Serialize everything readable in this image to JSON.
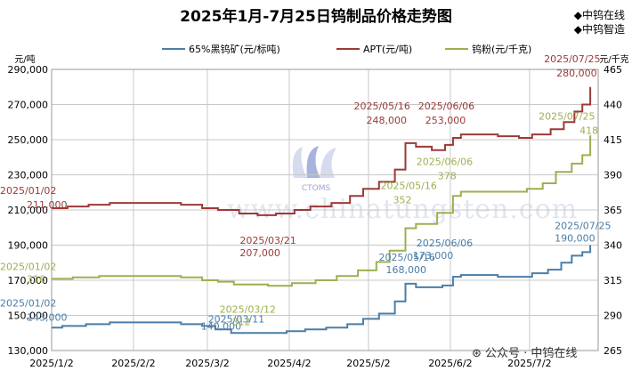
{
  "header": {
    "title": "2025年1月-7月25日钨制品价格走势图",
    "brand_line1": "中钨在线",
    "brand_line2": "中钨智造"
  },
  "watermark": {
    "logo_text": "CTOMS",
    "text": "www.chinatungsten.com"
  },
  "footer": {
    "text": "公众号 · 中钨在线"
  },
  "colors": {
    "ore": "#4a7ea8",
    "apt": "#9b3a38",
    "powder": "#9bb050",
    "grid": "#c8c8c8"
  },
  "chart_data": {
    "type": "line",
    "title": "2025年1月-7月25日钨制品价格走势图",
    "left_axis": {
      "unit_label": "元/吨",
      "ylim": [
        130000,
        290000
      ],
      "ticks": [
        130000,
        150000,
        170000,
        190000,
        210000,
        230000,
        250000,
        270000,
        290000
      ]
    },
    "right_axis": {
      "unit_label": "元/千克",
      "ylim": [
        265,
        465
      ],
      "ticks": [
        265,
        290,
        315,
        340,
        365,
        390,
        415,
        440,
        465
      ]
    },
    "x_ticks": [
      "2025/1/2",
      "2025/2/2",
      "2025/3/2",
      "2025/4/2",
      "2025/5/2",
      "2025/6/2",
      "2025/7/2"
    ],
    "x_range": [
      "2025/1/2",
      "2025/7/28"
    ],
    "legend_position": "top",
    "series": [
      {
        "name": "65%黑钨矿(元/标吨)",
        "axis": "left",
        "color": "#4a7ea8",
        "points": [
          [
            "2025/1/2",
            143000
          ],
          [
            "2025/1/6",
            144000
          ],
          [
            "2025/1/15",
            145000
          ],
          [
            "2025/1/24",
            146000
          ],
          [
            "2025/2/12",
            146000
          ],
          [
            "2025/2/20",
            145000
          ],
          [
            "2025/2/28",
            144000
          ],
          [
            "2025/3/5",
            142000
          ],
          [
            "2025/3/11",
            140000
          ],
          [
            "2025/3/25",
            140000
          ],
          [
            "2025/4/1",
            141000
          ],
          [
            "2025/4/8",
            142000
          ],
          [
            "2025/4/16",
            143000
          ],
          [
            "2025/4/24",
            145000
          ],
          [
            "2025/4/30",
            148000
          ],
          [
            "2025/5/6",
            151000
          ],
          [
            "2025/5/12",
            158000
          ],
          [
            "2025/5/16",
            168000
          ],
          [
            "2025/5/20",
            166000
          ],
          [
            "2025/5/30",
            167000
          ],
          [
            "2025/6/3",
            172000
          ],
          [
            "2025/6/6",
            173000
          ],
          [
            "2025/6/12",
            173000
          ],
          [
            "2025/6/20",
            172000
          ],
          [
            "2025/6/30",
            172000
          ],
          [
            "2025/7/3",
            174000
          ],
          [
            "2025/7/9",
            176000
          ],
          [
            "2025/7/14",
            180000
          ],
          [
            "2025/7/18",
            184000
          ],
          [
            "2025/7/22",
            186000
          ],
          [
            "2025/7/25",
            190000
          ]
        ],
        "annotations": [
          {
            "date": "2025/01/02",
            "value": "143,000"
          },
          {
            "date": "2025/03/11",
            "value": "140,000"
          },
          {
            "date": "2025/05/16",
            "value": "168,000"
          },
          {
            "date": "2025/06/06",
            "value": "173,000"
          },
          {
            "date": "2025/07/25",
            "value": "190,000"
          }
        ]
      },
      {
        "name": "APT(元/吨)",
        "axis": "left",
        "color": "#9b3a38",
        "points": [
          [
            "2025/1/2",
            211000
          ],
          [
            "2025/1/8",
            212000
          ],
          [
            "2025/1/16",
            213000
          ],
          [
            "2025/1/24",
            214000
          ],
          [
            "2025/2/12",
            214000
          ],
          [
            "2025/2/20",
            213000
          ],
          [
            "2025/2/28",
            211000
          ],
          [
            "2025/3/6",
            210000
          ],
          [
            "2025/3/14",
            208000
          ],
          [
            "2025/3/21",
            207000
          ],
          [
            "2025/3/28",
            208000
          ],
          [
            "2025/4/4",
            210000
          ],
          [
            "2025/4/10",
            212000
          ],
          [
            "2025/4/18",
            214000
          ],
          [
            "2025/4/25",
            218000
          ],
          [
            "2025/4/30",
            222000
          ],
          [
            "2025/5/6",
            226000
          ],
          [
            "2025/5/12",
            233000
          ],
          [
            "2025/5/16",
            248000
          ],
          [
            "2025/5/20",
            246000
          ],
          [
            "2025/5/26",
            244000
          ],
          [
            "2025/5/31",
            247000
          ],
          [
            "2025/6/3",
            251000
          ],
          [
            "2025/6/6",
            253000
          ],
          [
            "2025/6/16",
            253000
          ],
          [
            "2025/6/20",
            252000
          ],
          [
            "2025/6/28",
            251000
          ],
          [
            "2025/7/3",
            253000
          ],
          [
            "2025/7/10",
            256000
          ],
          [
            "2025/7/15",
            260000
          ],
          [
            "2025/7/19",
            266000
          ],
          [
            "2025/7/22",
            270000
          ],
          [
            "2025/7/25",
            280000
          ]
        ],
        "annotations": [
          {
            "date": "2025/01/02",
            "value": "211,000"
          },
          {
            "date": "2025/03/21",
            "value": "207,000"
          },
          {
            "date": "2025/05/16",
            "value": "248,000"
          },
          {
            "date": "2025/06/06",
            "value": "253,000"
          },
          {
            "date": "2025/07/25",
            "value": "280,000"
          }
        ]
      },
      {
        "name": "钨粉(元/千克)",
        "axis": "right",
        "color": "#9bb050",
        "points": [
          [
            "2025/1/2",
            316
          ],
          [
            "2025/1/10",
            317
          ],
          [
            "2025/1/20",
            318
          ],
          [
            "2025/2/12",
            318
          ],
          [
            "2025/2/20",
            317
          ],
          [
            "2025/2/28",
            315
          ],
          [
            "2025/3/6",
            314
          ],
          [
            "2025/3/12",
            312
          ],
          [
            "2025/3/25",
            311
          ],
          [
            "2025/4/3",
            313
          ],
          [
            "2025/4/12",
            315
          ],
          [
            "2025/4/20",
            318
          ],
          [
            "2025/4/28",
            322
          ],
          [
            "2025/5/5",
            328
          ],
          [
            "2025/5/10",
            336
          ],
          [
            "2025/5/16",
            352
          ],
          [
            "2025/5/20",
            355
          ],
          [
            "2025/5/28",
            363
          ],
          [
            "2025/6/3",
            375
          ],
          [
            "2025/6/6",
            378
          ],
          [
            "2025/6/16",
            378
          ],
          [
            "2025/6/24",
            378
          ],
          [
            "2025/7/1",
            380
          ],
          [
            "2025/7/7",
            384
          ],
          [
            "2025/7/12",
            392
          ],
          [
            "2025/7/18",
            398
          ],
          [
            "2025/7/22",
            404
          ],
          [
            "2025/7/25",
            418
          ]
        ],
        "annotations": [
          {
            "date": "2025/01/02",
            "value": "316"
          },
          {
            "date": "2025/03/12",
            "value": "312"
          },
          {
            "date": "2025/05/16",
            "value": "352"
          },
          {
            "date": "2025/06/06",
            "value": "378"
          },
          {
            "date": "2025/07/25",
            "value": "418"
          }
        ]
      }
    ]
  }
}
